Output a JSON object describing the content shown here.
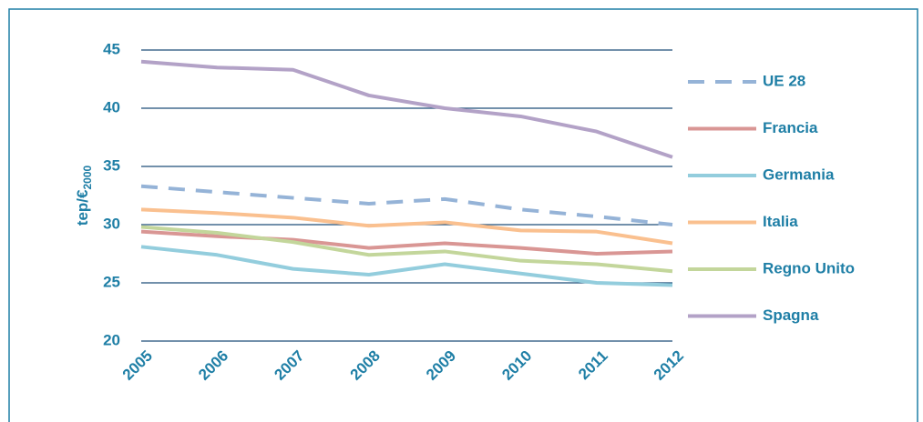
{
  "chart_data": {
    "type": "line",
    "ylabel": "tep/€",
    "ylabel_subscript": "2000",
    "categories": [
      "2005",
      "2006",
      "2007",
      "2008",
      "2009",
      "2010",
      "2011",
      "2012"
    ],
    "ylim": [
      20,
      45
    ],
    "yticks": [
      20,
      25,
      30,
      35,
      40,
      45
    ],
    "grid": true,
    "series": [
      {
        "name": "UE 28",
        "color": "#95b3d7",
        "dashed": true,
        "values": [
          33.3,
          32.8,
          32.3,
          31.8,
          32.2,
          31.3,
          30.7,
          30.0
        ]
      },
      {
        "name": "Francia",
        "color": "#d99694",
        "dashed": false,
        "values": [
          29.4,
          29.0,
          28.7,
          28.0,
          28.4,
          28.0,
          27.5,
          27.7
        ]
      },
      {
        "name": "Germania",
        "color": "#93cddd",
        "dashed": false,
        "values": [
          28.1,
          27.4,
          26.2,
          25.7,
          26.6,
          25.8,
          25.0,
          24.8
        ]
      },
      {
        "name": "Italia",
        "color": "#fac08f",
        "dashed": false,
        "values": [
          31.3,
          31.0,
          30.6,
          29.9,
          30.2,
          29.5,
          29.4,
          28.4
        ]
      },
      {
        "name": "Regno Unito",
        "color": "#c3d69b",
        "dashed": false,
        "values": [
          29.8,
          29.3,
          28.5,
          27.4,
          27.7,
          26.9,
          26.6,
          26.0
        ]
      },
      {
        "name": "Spagna",
        "color": "#b3a2c7",
        "dashed": false,
        "values": [
          44.0,
          43.5,
          43.3,
          41.1,
          40.0,
          39.3,
          38.0,
          35.8
        ]
      }
    ]
  }
}
